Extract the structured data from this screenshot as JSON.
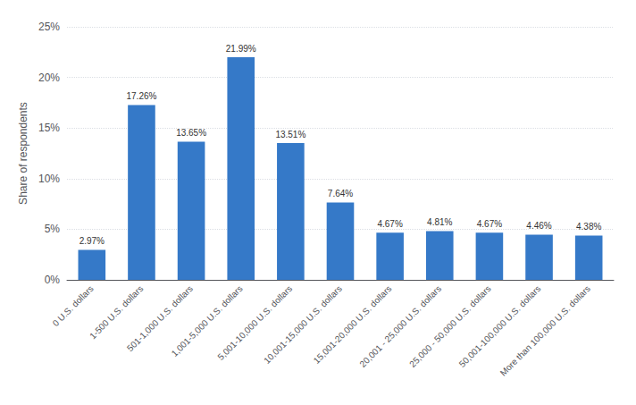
{
  "chart_data": {
    "type": "bar",
    "categories": [
      "0 U.S. dollars",
      "1-500 U.S. dollars",
      "501-1,000 U.S. dollars",
      "1,001-5,000 U.S. dollars",
      "5,001-10,000 U.S. dollars",
      "10,001-15,000 U.S. dollars",
      "15,001-20,000 U.S. dollars",
      "20,001 - 25,000 U.S. dollars",
      "25,000 - 50,000 U.S. dollars",
      "50,001-100,000 U.S. dollars",
      "More than 100,000 U.S. dollars"
    ],
    "values": [
      2.97,
      17.26,
      13.65,
      21.99,
      13.51,
      7.64,
      4.67,
      4.81,
      4.67,
      4.46,
      4.38
    ],
    "value_labels": [
      "2.97%",
      "17.26%",
      "13.65%",
      "21.99%",
      "13.51%",
      "7.64%",
      "4.67%",
      "4.81%",
      "4.67%",
      "4.46%",
      "4.38%"
    ],
    "data_labels": true,
    "color": "#3579c8",
    "ylabel": "Share of respondents",
    "ylim": [
      0,
      25
    ],
    "yticks": [
      {
        "value": 0,
        "label": "0%"
      },
      {
        "value": 5,
        "label": "5%"
      },
      {
        "value": 10,
        "label": "10%"
      },
      {
        "value": 15,
        "label": "15%"
      },
      {
        "value": 20,
        "label": "20%"
      },
      {
        "value": 25,
        "label": "25%"
      }
    ],
    "grid": true
  }
}
